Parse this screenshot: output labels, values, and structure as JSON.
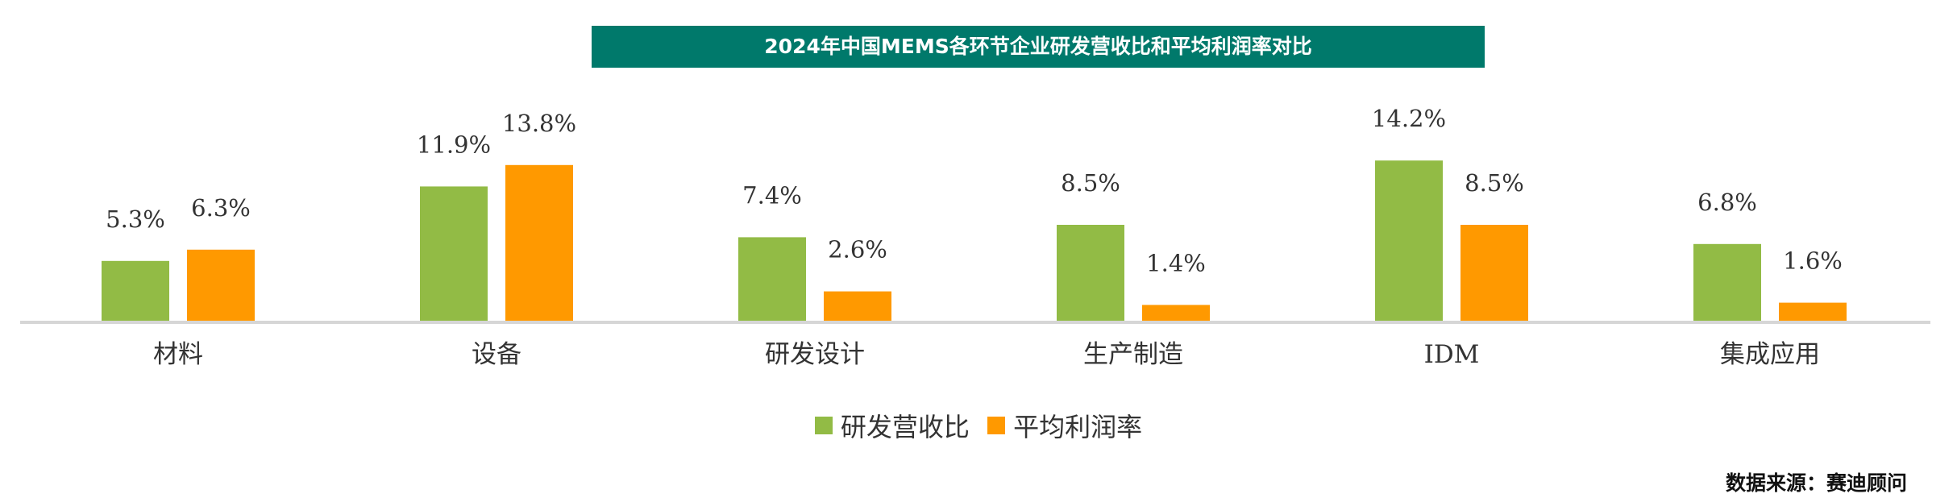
{
  "chart_data": {
    "type": "bar",
    "title": "2024年中国MEMS各环节企业研发营收比和平均利润率对比",
    "categories": [
      "材料",
      "设备",
      "研发设计",
      "生产制造",
      "IDM",
      "集成应用"
    ],
    "series": [
      {
        "name": "研发营收比",
        "values": [
          5.3,
          11.9,
          7.4,
          8.5,
          14.2,
          6.8
        ],
        "color": "#92bb45"
      },
      {
        "name": "平均利润率",
        "values": [
          6.3,
          13.8,
          2.6,
          1.4,
          8.5,
          1.6
        ],
        "color": "#ff9900"
      }
    ],
    "unit": "%",
    "legend_position": "bottom",
    "grid": false,
    "source": "数据来源：赛迪顾问"
  }
}
